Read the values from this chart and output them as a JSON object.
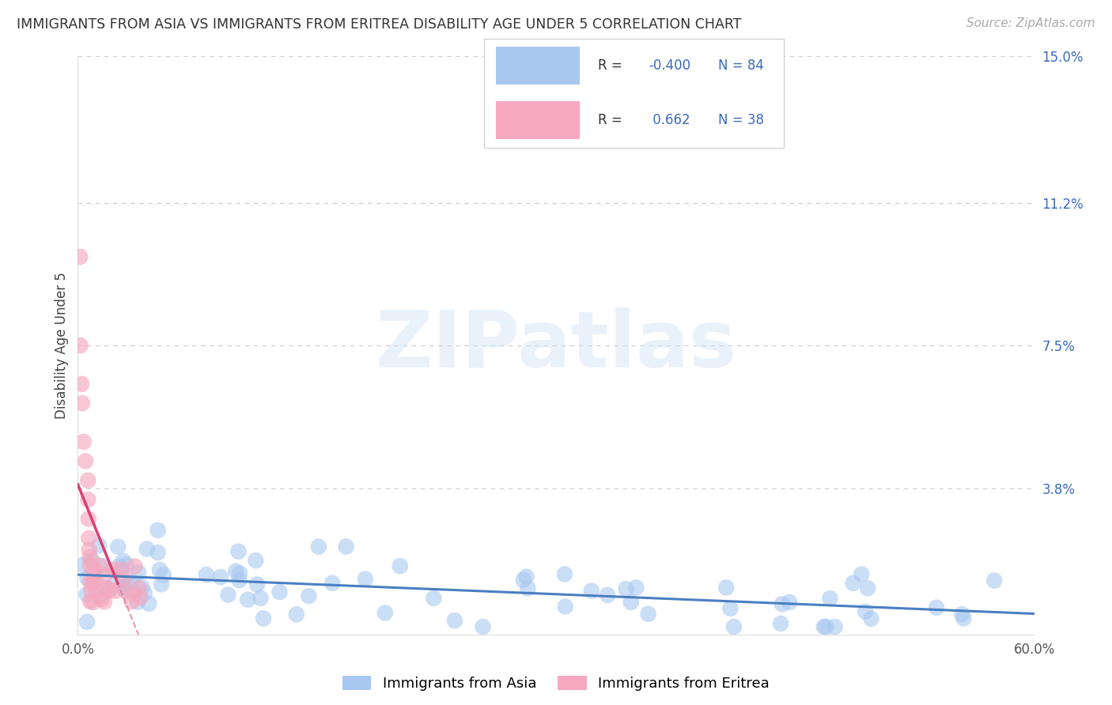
{
  "title": "IMMIGRANTS FROM ASIA VS IMMIGRANTS FROM ERITREA DISABILITY AGE UNDER 5 CORRELATION CHART",
  "source": "Source: ZipAtlas.com",
  "ylabel": "Disability Age Under 5",
  "xlim": [
    0.0,
    0.6
  ],
  "ylim": [
    0.0,
    0.15
  ],
  "ytick_positions": [
    0.038,
    0.075,
    0.112,
    0.15
  ],
  "ytick_labels": [
    "3.8%",
    "7.5%",
    "11.2%",
    "15.0%"
  ],
  "xtick_positions": [
    0.0,
    0.6
  ],
  "xtick_labels": [
    "0.0%",
    "60.0%"
  ],
  "background_color": "#ffffff",
  "grid_color": "#cccccc",
  "asia_color": "#a8c8f0",
  "asia_line_color": "#4a7fc1",
  "eritrea_color": "#f5a8bf",
  "eritrea_line_color": "#d94070",
  "eritrea_dash_color": "#e07090",
  "legend_R_asia": "-0.400",
  "legend_N_asia": "84",
  "legend_R_eritrea": "0.662",
  "legend_N_eritrea": "38",
  "legend_color": "#3a6abf",
  "watermark_text": "ZIPatlas",
  "watermark_color": "#d0e4f5",
  "title_fontsize": 12.5,
  "source_fontsize": 11,
  "tick_fontsize": 12,
  "legend_fontsize": 12,
  "ylabel_fontsize": 12
}
